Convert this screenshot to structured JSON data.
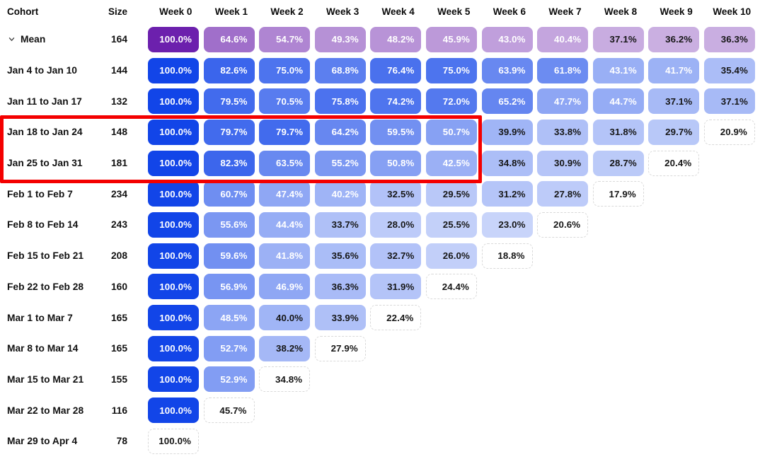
{
  "colors": {
    "cell-blue": "#1245e8",
    "mean-purple": "#6c20ad",
    "highlight-red": "#f40000",
    "text-dark": "#161616",
    "text-light": "#ffffff",
    "dashed-border": "#d9d9d9"
  },
  "icons": {
    "mean_expander": "chevron-down-icon"
  },
  "chart_data": {
    "type": "heatmap",
    "title": "Weekly cohort retention table",
    "columns": [
      "Cohort",
      "Size",
      "Week 0",
      "Week 1",
      "Week 2",
      "Week 3",
      "Week 4",
      "Week 5",
      "Week 6",
      "Week 7",
      "Week 8",
      "Week 9",
      "Week 10"
    ],
    "value_unit": "%",
    "legend_position": "none",
    "highlight": {
      "rows": [
        "Jan 18 to Jan 24",
        "Jan 25 to Jan 31"
      ],
      "weeks": [
        "Week 0",
        "Week 1",
        "Week 2",
        "Week 3",
        "Week 4",
        "Week 5"
      ],
      "color": "#f40000"
    },
    "rows": [
      {
        "cohort": "Mean",
        "size": 164,
        "style": "mean",
        "expandable": true,
        "dashed_last": false,
        "values": [
          100.0,
          64.6,
          54.7,
          49.3,
          48.2,
          45.9,
          43.0,
          40.4,
          37.1,
          36.2,
          36.3
        ]
      },
      {
        "cohort": "Jan 4 to Jan 10",
        "size": 144,
        "style": "cohort",
        "expandable": false,
        "dashed_last": false,
        "values": [
          100.0,
          82.6,
          75.0,
          68.8,
          76.4,
          75.0,
          63.9,
          61.8,
          43.1,
          41.7,
          35.4
        ]
      },
      {
        "cohort": "Jan 11 to Jan 17",
        "size": 132,
        "style": "cohort",
        "expandable": false,
        "dashed_last": false,
        "values": [
          100.0,
          79.5,
          70.5,
          75.8,
          74.2,
          72.0,
          65.2,
          47.7,
          44.7,
          37.1,
          37.1
        ]
      },
      {
        "cohort": "Jan 18 to Jan 24",
        "size": 148,
        "style": "cohort",
        "expandable": false,
        "dashed_last": true,
        "values": [
          100.0,
          79.7,
          79.7,
          64.2,
          59.5,
          50.7,
          39.9,
          33.8,
          31.8,
          29.7,
          20.9
        ]
      },
      {
        "cohort": "Jan 25 to Jan 31",
        "size": 181,
        "style": "cohort",
        "expandable": false,
        "dashed_last": true,
        "values": [
          100.0,
          82.3,
          63.5,
          55.2,
          50.8,
          42.5,
          34.8,
          30.9,
          28.7,
          20.4
        ]
      },
      {
        "cohort": "Feb 1 to Feb 7",
        "size": 234,
        "style": "cohort",
        "expandable": false,
        "dashed_last": true,
        "values": [
          100.0,
          60.7,
          47.4,
          40.2,
          32.5,
          29.5,
          31.2,
          27.8,
          17.9
        ]
      },
      {
        "cohort": "Feb 8 to Feb 14",
        "size": 243,
        "style": "cohort",
        "expandable": false,
        "dashed_last": true,
        "values": [
          100.0,
          55.6,
          44.4,
          33.7,
          28.0,
          25.5,
          23.0,
          20.6
        ]
      },
      {
        "cohort": "Feb 15 to Feb 21",
        "size": 208,
        "style": "cohort",
        "expandable": false,
        "dashed_last": true,
        "values": [
          100.0,
          59.6,
          41.8,
          35.6,
          32.7,
          26.0,
          18.8
        ]
      },
      {
        "cohort": "Feb 22 to Feb 28",
        "size": 160,
        "style": "cohort",
        "expandable": false,
        "dashed_last": true,
        "values": [
          100.0,
          56.9,
          46.9,
          36.3,
          31.9,
          24.4
        ]
      },
      {
        "cohort": "Mar 1 to Mar 7",
        "size": 165,
        "style": "cohort",
        "expandable": false,
        "dashed_last": true,
        "values": [
          100.0,
          48.5,
          40.0,
          33.9,
          22.4
        ]
      },
      {
        "cohort": "Mar 8 to Mar 14",
        "size": 165,
        "style": "cohort",
        "expandable": false,
        "dashed_last": true,
        "values": [
          100.0,
          52.7,
          38.2,
          27.9
        ]
      },
      {
        "cohort": "Mar 15 to Mar 21",
        "size": 155,
        "style": "cohort",
        "expandable": false,
        "dashed_last": true,
        "values": [
          100.0,
          52.9,
          34.8
        ]
      },
      {
        "cohort": "Mar 22 to Mar 28",
        "size": 116,
        "style": "cohort",
        "expandable": false,
        "dashed_last": true,
        "values": [
          100.0,
          45.7
        ]
      },
      {
        "cohort": "Mar 29 to Apr 4",
        "size": 78,
        "style": "cohort",
        "expandable": false,
        "dashed_last": true,
        "values": [
          100.0
        ]
      }
    ]
  }
}
